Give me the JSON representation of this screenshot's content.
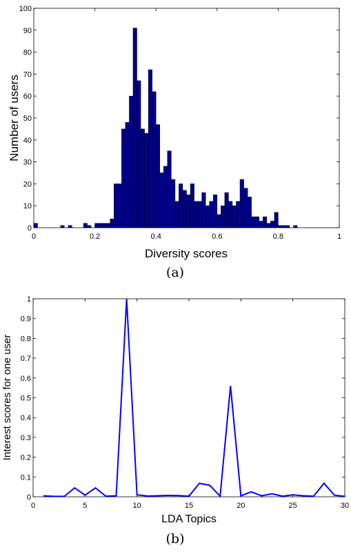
{
  "chart_data": [
    {
      "type": "bar",
      "xlabel": "Diversity scores",
      "ylabel": "Number of users",
      "caption": "(a)",
      "xlim": [
        0,
        1
      ],
      "ylim": [
        0,
        100
      ],
      "xticks": [
        "0",
        "0.2",
        "0.4",
        "0.6",
        "0.8",
        "1"
      ],
      "yticks": [
        "0",
        "10",
        "20",
        "30",
        "40",
        "50",
        "60",
        "70",
        "80",
        "90",
        "100"
      ],
      "grid": false,
      "bar_color": "#00008B",
      "bin_width": 0.0125,
      "bin_starts": [
        0,
        0.0125,
        0.025,
        0.0375,
        0.05,
        0.0625,
        0.075,
        0.0875,
        0.1,
        0.1125,
        0.125,
        0.1375,
        0.15,
        0.1625,
        0.175,
        0.1875,
        0.2,
        0.2125,
        0.225,
        0.2375,
        0.25,
        0.2625,
        0.275,
        0.2875,
        0.3,
        0.3125,
        0.325,
        0.3375,
        0.35,
        0.3625,
        0.375,
        0.3875,
        0.4,
        0.4125,
        0.425,
        0.4375,
        0.45,
        0.4625,
        0.475,
        0.4875,
        0.5,
        0.5125,
        0.525,
        0.5375,
        0.55,
        0.5625,
        0.575,
        0.5875,
        0.6,
        0.6125,
        0.625,
        0.6375,
        0.65,
        0.6625,
        0.675,
        0.6875,
        0.7,
        0.7125,
        0.725,
        0.7375,
        0.75,
        0.7625,
        0.775,
        0.7875,
        0.8,
        0.8125,
        0.825,
        0.8375,
        0.85,
        0.8625,
        0.875
      ],
      "values": [
        2,
        0,
        0,
        0,
        0,
        0,
        0,
        1,
        0,
        1,
        0,
        0,
        0,
        2,
        1,
        0,
        2,
        2,
        2,
        2,
        4,
        20,
        20,
        45,
        48,
        60,
        91,
        67,
        45,
        43,
        72,
        62,
        47,
        25,
        28,
        35,
        22,
        12,
        20,
        17,
        15,
        20,
        12,
        12,
        16,
        10,
        12,
        15,
        6,
        10,
        16,
        12,
        10,
        12,
        22,
        18,
        14,
        5,
        5,
        3,
        5,
        2,
        3,
        7,
        1,
        1,
        1,
        0,
        1,
        0,
        0
      ]
    },
    {
      "type": "line",
      "xlabel": "LDA Topics",
      "ylabel": "Interest scores for one user",
      "caption": "(b)",
      "xlim": [
        0,
        30
      ],
      "ylim": [
        0,
        1
      ],
      "xticks": [
        "0",
        "5",
        "10",
        "15",
        "20",
        "25",
        "30"
      ],
      "yticks": [
        "0",
        "0.1",
        "0.2",
        "0.3",
        "0.4",
        "0.5",
        "0.6",
        "0.7",
        "0.8",
        "0.9",
        "1"
      ],
      "grid": false,
      "line_color": "#0000FF",
      "x": [
        1,
        2,
        3,
        4,
        5,
        6,
        7,
        8,
        9,
        10,
        11,
        12,
        13,
        14,
        15,
        16,
        17,
        18,
        19,
        20,
        21,
        22,
        23,
        24,
        25,
        26,
        27,
        28,
        29,
        30
      ],
      "values": [
        0.005,
        0.002,
        0.002,
        0.045,
        0.008,
        0.045,
        0.003,
        0.005,
        1.0,
        0.01,
        0.004,
        0.005,
        0.007,
        0.006,
        0.003,
        0.068,
        0.058,
        0.003,
        0.56,
        0.005,
        0.025,
        0.005,
        0.015,
        0.003,
        0.01,
        0.005,
        0.003,
        0.068,
        0.008,
        0.002
      ]
    }
  ]
}
